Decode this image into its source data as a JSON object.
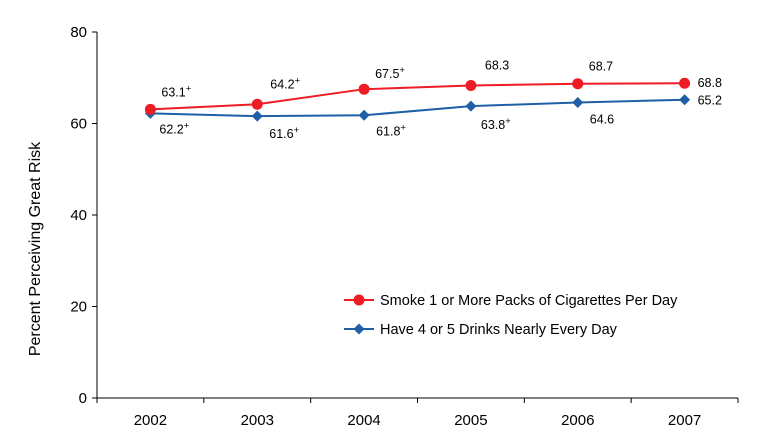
{
  "chart_data": {
    "type": "line",
    "title": "",
    "xlabel": "",
    "ylabel": "Percent Perceiving Great Risk",
    "x": [
      "2002",
      "2003",
      "2004",
      "2005",
      "2006",
      "2007"
    ],
    "ylim": [
      0,
      80
    ],
    "yticks": [
      0,
      20,
      40,
      60,
      80
    ],
    "grid": false,
    "legend_position": "bottom-right",
    "series": [
      {
        "name": "Smoke 1 or More Packs of Cigarettes Per Day",
        "color": "#ee1c24",
        "marker": "circle",
        "values": [
          63.1,
          64.2,
          67.5,
          68.3,
          68.7,
          68.8
        ],
        "labels": [
          "63.1",
          "64.2",
          "67.5",
          "68.3",
          "68.7",
          "68.8"
        ],
        "significant": [
          true,
          true,
          true,
          false,
          false,
          false
        ]
      },
      {
        "name": "Have 4 or 5 Drinks Nearly Every Day",
        "color": "#1f5fa6",
        "marker": "diamond",
        "values": [
          62.2,
          61.6,
          61.8,
          63.8,
          64.6,
          65.2
        ],
        "labels": [
          "62.2",
          "61.6",
          "61.8",
          "63.8",
          "64.6",
          "65.2"
        ],
        "significant": [
          true,
          true,
          true,
          true,
          false,
          false
        ]
      }
    ],
    "significance_marker": "+"
  }
}
